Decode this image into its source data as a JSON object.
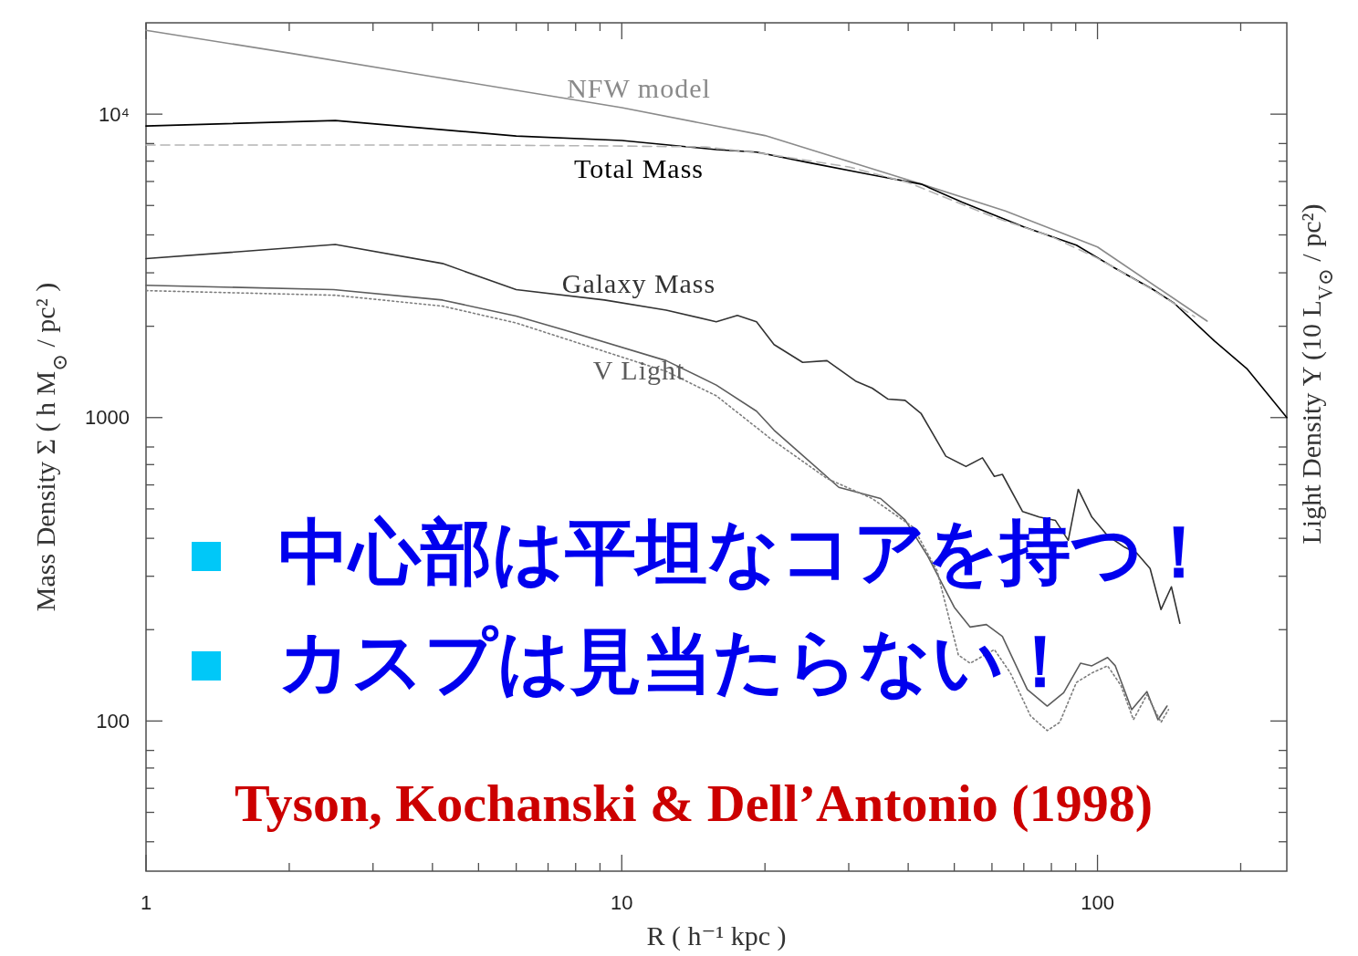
{
  "chart_data": {
    "type": "line",
    "xlabel": "R ( h⁻¹ kpc )",
    "ylabel": "Mass Density Σ ( h M$_{⊙}$ / pc² )",
    "y2label": "Light Density Υ (10 L$_{V⊙}$ / pc²)",
    "log": "xy",
    "xlim": [
      1,
      250
    ],
    "ylim": [
      32,
      20000
    ],
    "xticks": [
      1,
      10,
      100
    ],
    "yticks": [
      100,
      1000,
      {
        "value": 10000,
        "label": "10⁴"
      }
    ],
    "grid": false,
    "series": [
      {
        "name": "NFW model",
        "color": "#8a8a8a",
        "line_style": "solid",
        "x": [
          1,
          2,
          4,
          10,
          20,
          41,
          64,
          100,
          170
        ],
        "values": [
          18900,
          15900,
          13300,
          10500,
          8500,
          6000,
          4800,
          3650,
          2080
        ]
      },
      {
        "name": "Total Mass",
        "color": "#000000",
        "line_style": "solid",
        "x": [
          1,
          2.5,
          6,
          10,
          15.8,
          19.2,
          24.5,
          33,
          42.6,
          52,
          70,
          90.3,
          108,
          131,
          145,
          176,
          206,
          250
        ],
        "values": [
          9140,
          9530,
          8470,
          8190,
          7640,
          7500,
          6940,
          6340,
          5880,
          5120,
          4250,
          3700,
          3130,
          2640,
          2380,
          1790,
          1450,
          1000
        ]
      },
      {
        "color": "#b4b4b4",
        "line_style": "dashed",
        "x": [
          1,
          5,
          10,
          15,
          20,
          30,
          40,
          60,
          80,
          100,
          130,
          160
        ],
        "values": [
          7910,
          7910,
          7850,
          7800,
          7400,
          6700,
          5950,
          4600,
          3950,
          3350,
          2650,
          2150
        ]
      },
      {
        "name": "Galaxy Mass",
        "color": "#333333",
        "line_style": "solid",
        "x": [
          1,
          2.5,
          4.2,
          6,
          9.2,
          12.4,
          15.8,
          17.5,
          19.2,
          20.9,
          24,
          27,
          31,
          33.6,
          36.3,
          39.4,
          42.6,
          48,
          52.9,
          57.3,
          60.7,
          63.1,
          69.6,
          75.4,
          81.6,
          86.8,
          91.1,
          97.3,
          105,
          114,
          121,
          129,
          136,
          143,
          149
        ],
        "values": [
          3340,
          3720,
          3220,
          2640,
          2440,
          2260,
          2070,
          2170,
          2070,
          1740,
          1520,
          1540,
          1320,
          1250,
          1150,
          1140,
          1030,
          746,
          690,
          737,
          640,
          650,
          490,
          470,
          458,
          394,
          580,
          470,
          408,
          374,
          357,
          318,
          233,
          277,
          210
        ]
      },
      {
        "name": "V Light",
        "color": "#5c5c5c",
        "line_style": "solid",
        "x": [
          1,
          2.48,
          4.2,
          6,
          7.6,
          12.4,
          15.8,
          19.2,
          20.9,
          28.6,
          35,
          39.4,
          44,
          50,
          54,
          58.4,
          63.1,
          71.2,
          78.4,
          84.9,
          92.1,
          97.3,
          105,
          109,
          118,
          127,
          134,
          140
        ],
        "values": [
          2730,
          2640,
          2440,
          2160,
          1940,
          1540,
          1280,
          1050,
          909,
          589,
          541,
          460,
          349,
          237,
          204,
          208,
          190,
          127,
          112,
          124,
          155,
          152,
          162,
          152,
          109,
          125,
          101,
          112
        ]
      },
      {
        "color": "#7d7d7d",
        "line_style": "dotted",
        "x": [
          1,
          2.5,
          4.2,
          6,
          12.4,
          15.8,
          20.5,
          27,
          33.6,
          41,
          46,
          51,
          54,
          60.7,
          65.6,
          72.3,
          78.4,
          83.3,
          90.3,
          97.3,
          105,
          112,
          119,
          127,
          136,
          141
        ],
        "values": [
          2620,
          2530,
          2330,
          2050,
          1420,
          1180,
          855,
          630,
          541,
          435,
          313,
          165,
          155,
          172,
          144,
          104,
          93,
          99,
          134,
          144,
          152,
          131,
          101,
          122,
          99,
          109
        ]
      }
    ],
    "annotations": [
      "中心部は平坦なコアを持つ！",
      "カスプは見当たらない！",
      "Tyson, Kochanski & Dell’Antonio (1998)"
    ]
  }
}
